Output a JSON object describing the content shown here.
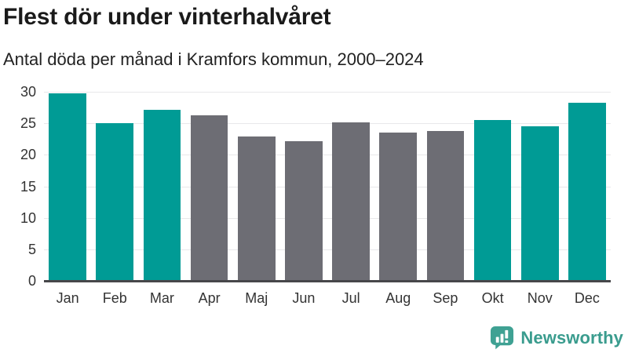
{
  "header": {
    "title": "Flest dör under vinterhalvåret",
    "subtitle": "Antal döda per månad i Kramfors kommun, 2000–2024"
  },
  "chart_data": {
    "type": "bar",
    "title": "Flest dör under vinterhalvåret",
    "subtitle": "Antal döda per månad i Kramfors kommun, 2000–2024",
    "categories": [
      "Jan",
      "Feb",
      "Mar",
      "Apr",
      "Maj",
      "Jun",
      "Jul",
      "Aug",
      "Sep",
      "Okt",
      "Nov",
      "Dec"
    ],
    "values": [
      29.7,
      25.0,
      27.1,
      26.3,
      22.9,
      22.2,
      25.2,
      23.5,
      23.8,
      25.5,
      24.5,
      28.2
    ],
    "bar_colors": [
      "#009b95",
      "#009b95",
      "#009b95",
      "#6d6d74",
      "#6d6d74",
      "#6d6d74",
      "#6d6d74",
      "#6d6d74",
      "#6d6d74",
      "#009b95",
      "#009b95",
      "#009b95"
    ],
    "highlight_color": "#009b95",
    "muted_color": "#6d6d74",
    "xlabel": "",
    "ylabel": "",
    "ylim": [
      0,
      30
    ],
    "yticks": [
      0,
      5,
      10,
      15,
      20,
      25,
      30
    ],
    "grid": "horizontal",
    "legend": "none"
  },
  "branding": {
    "logo_text": "Newsworthy",
    "logo_text_color": "#3a9c8e",
    "logo_icon_color": "#3fa193",
    "logo_icon": "newsworthy-chart-bubble-icon"
  }
}
